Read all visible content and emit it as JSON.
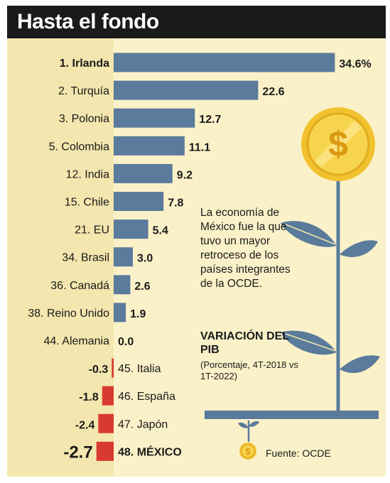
{
  "title": "Hasta el fondo",
  "note": "La economía de México fue la que tuvo un mayor retroceso de los países integrantes de la OCDE.",
  "note_title": "VARIACIÓN DEL PIB",
  "note_subtitle": "(Porcentaje, 4T-2018 vs 1T-2022)",
  "source": "Fuente: OCDE",
  "icons": [
    "dollar-coin-icon",
    "plant-icon",
    "sprout-icon",
    "small-coin-icon"
  ],
  "colors": {
    "positive_bar": "#5a7b9b",
    "negative_bar": "#d93a2f",
    "title_bar": "#1a1a1a",
    "background": "#fbf1c9",
    "left_panel": "#f3e6ae",
    "coin": "#f2c12e",
    "leaf": "#5a7b9b"
  },
  "chart_data": {
    "type": "bar",
    "orientation": "horizontal",
    "title": "",
    "xlabel": "",
    "ylabel": "",
    "categories": [
      "1. Irlanda",
      "2. Turquía",
      "3. Polonia",
      "5. Colombia",
      "12. India",
      "15. Chile",
      "21. EU",
      "34. Brasil",
      "36. Canadá",
      "38. Reino Unido",
      "44. Alemania",
      "45. Italia",
      "46. España",
      "47. Japón",
      "48. MÉXICO"
    ],
    "values": [
      34.6,
      22.6,
      12.7,
      11.1,
      9.2,
      7.8,
      5.4,
      3.0,
      2.6,
      1.9,
      0.0,
      -0.3,
      -1.8,
      -2.4,
      -2.7
    ],
    "value_labels": [
      "34.6%",
      "22.6",
      "12.7",
      "11.1",
      "9.2",
      "7.8",
      "5.4",
      "3.0",
      "2.6",
      "1.9",
      "0.0",
      "-0.3",
      "-1.8",
      "-2.4",
      "-2.7"
    ],
    "highlight": [
      "1. Irlanda",
      "48. MÉXICO"
    ],
    "xlim": [
      -3,
      35
    ],
    "grid": false,
    "legend": "none"
  }
}
